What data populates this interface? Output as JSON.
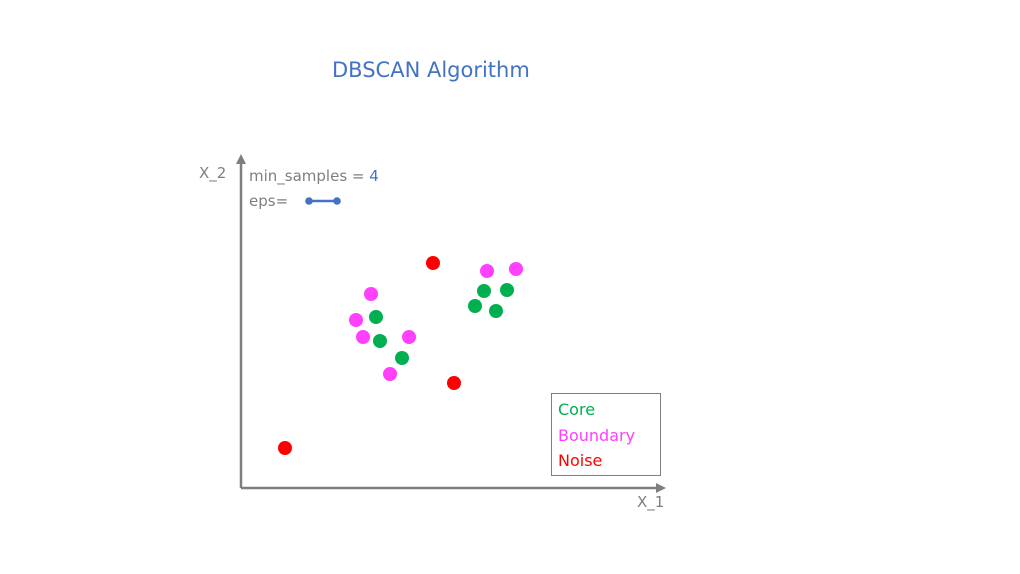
{
  "title": "DBSCAN Algorithm",
  "axes": {
    "x_label": "X_1",
    "y_label": "X_2"
  },
  "params": {
    "min_samples_label": "min_samples = ",
    "min_samples_value": "4",
    "eps_label": "eps="
  },
  "legend": {
    "core": "Core",
    "boundary": "Boundary",
    "noise": "Noise"
  },
  "colors": {
    "title": "#4472c4",
    "axis": "#7f7f7f",
    "text": "#7f7f7f",
    "eps_marker": "#4472c4",
    "core": "#00b050",
    "boundary": "#ff40ff",
    "noise": "#ff0000"
  },
  "points": {
    "core": [
      [
        376,
        317
      ],
      [
        380,
        341
      ],
      [
        402,
        358
      ],
      [
        484,
        291
      ],
      [
        507,
        290
      ],
      [
        475,
        306
      ],
      [
        496,
        311
      ]
    ],
    "boundary": [
      [
        371,
        294
      ],
      [
        356,
        320
      ],
      [
        363,
        337
      ],
      [
        409,
        337
      ],
      [
        390,
        374
      ],
      [
        487,
        271
      ],
      [
        516,
        269
      ]
    ],
    "noise": [
      [
        433,
        263
      ],
      [
        454,
        383
      ],
      [
        285,
        448
      ]
    ]
  }
}
